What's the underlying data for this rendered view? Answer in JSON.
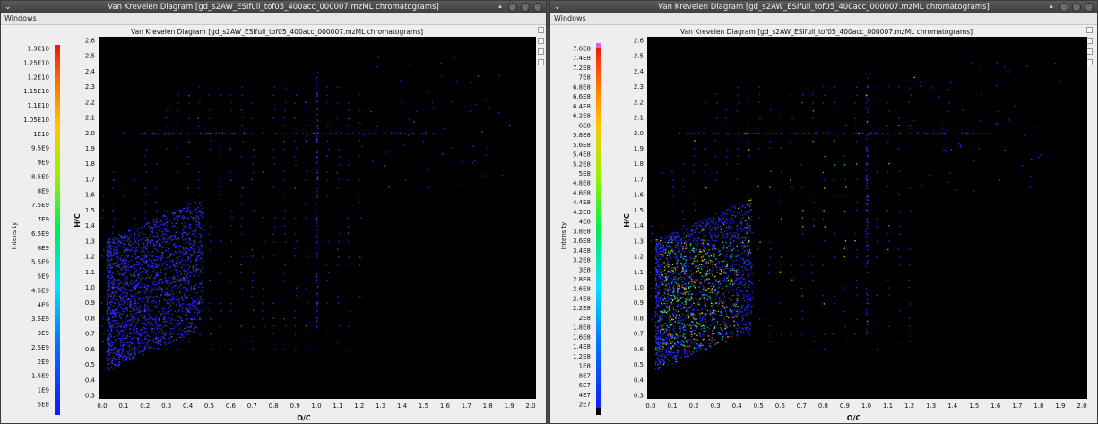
{
  "windows": [
    {
      "title": "Van Krevelen Diagram [gd_s2AW_ESIfull_tof05_400acc_000007.mzML chromatograms]",
      "menu": "Windows",
      "plot_title": "Van Krevelen Diagram [gd_s2AW_ESIfull_tof05_400acc_000007.mzML chromatograms]",
      "colorbar_label": "Intensity",
      "colorbar_ticks": [
        "1.3E10",
        "1.25E10",
        "1.2E10",
        "1.15E10",
        "1.1E10",
        "1.05E10",
        "1E10",
        "9.5E9",
        "9E9",
        "8.5E9",
        "8E9",
        "7.5E9",
        "7E9",
        "6.5E9",
        "6E9",
        "5.5E9",
        "5E9",
        "4.5E9",
        "4E9",
        "3.5E9",
        "3E9",
        "2.5E9",
        "2E9",
        "1.5E9",
        "1E9",
        "5E8"
      ],
      "chart_data": {
        "type": "heatmap",
        "xlabel": "O/C",
        "ylabel": "H/C",
        "xlim": [
          0.0,
          2.0
        ],
        "ylim": [
          0.3,
          2.6
        ],
        "x_ticks": [
          "0.0",
          "0.1",
          "0.2",
          "0.3",
          "0.4",
          "0.5",
          "0.6",
          "0.7",
          "0.8",
          "0.9",
          "1.0",
          "1.1",
          "1.2",
          "1.3",
          "1.4",
          "1.5",
          "1.6",
          "1.7",
          "1.8",
          "1.9",
          "2.0"
        ],
        "y_ticks": [
          "0.3",
          "0.4",
          "0.5",
          "0.6",
          "0.7",
          "0.8",
          "0.9",
          "1.0",
          "1.1",
          "1.2",
          "1.3",
          "1.4",
          "1.5",
          "1.6",
          "1.7",
          "1.8",
          "1.9",
          "2.0",
          "2.1",
          "2.2",
          "2.3",
          "2.4",
          "2.5",
          "2.6"
        ],
        "background": "#000000"
      }
    },
    {
      "title": "Van Krevelen Diagram [gd_s2AW_ESIfull_tof05_400acc_000007.mzML chromatograms]",
      "menu": "Windows",
      "plot_title": "Van Krevelen Diagram [gd_s2AW_ESIfull_tof05_400acc_000007.mzML chromatograms]",
      "colorbar_label": "Intensity",
      "colorbar_ticks": [
        "7.6E8",
        "7.4E8",
        "7.2E8",
        "7E8",
        "6.8E8",
        "6.6E8",
        "6.4E8",
        "6.2E8",
        "6E8",
        "5.8E8",
        "5.6E8",
        "5.4E8",
        "5.2E8",
        "5E8",
        "4.8E8",
        "4.6E8",
        "4.4E8",
        "4.2E8",
        "4E8",
        "3.8E8",
        "3.6E8",
        "3.4E8",
        "3.2E8",
        "3E8",
        "2.8E8",
        "2.6E8",
        "2.4E8",
        "2.2E8",
        "2E8",
        "1.8E8",
        "1.6E8",
        "1.4E8",
        "1.2E8",
        "1E8",
        "8E7",
        "6E7",
        "4E7",
        "2E7"
      ],
      "chart_data": {
        "type": "heatmap",
        "xlabel": "O/C",
        "ylabel": "H/C",
        "xlim": [
          0.0,
          2.0
        ],
        "ylim": [
          0.3,
          2.6
        ],
        "x_ticks": [
          "0.0",
          "0.1",
          "0.2",
          "0.3",
          "0.4",
          "0.5",
          "0.6",
          "0.7",
          "0.8",
          "0.9",
          "1.0",
          "1.1",
          "1.2",
          "1.3",
          "1.4",
          "1.5",
          "1.6",
          "1.7",
          "1.8",
          "1.9",
          "2.0"
        ],
        "y_ticks": [
          "0.3",
          "0.4",
          "0.5",
          "0.6",
          "0.7",
          "0.8",
          "0.9",
          "1.0",
          "1.1",
          "1.2",
          "1.3",
          "1.4",
          "1.5",
          "1.6",
          "1.7",
          "1.8",
          "1.9",
          "2.0",
          "2.1",
          "2.2",
          "2.3",
          "2.4",
          "2.5",
          "2.6"
        ],
        "background": "#000000"
      }
    }
  ]
}
